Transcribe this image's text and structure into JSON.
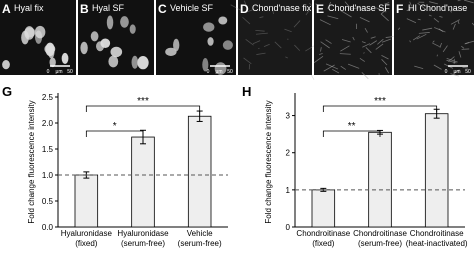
{
  "image_panels": [
    {
      "letter": "A",
      "label": "Hyal fix",
      "scale_bar": [
        "0",
        "μm",
        "50"
      ]
    },
    {
      "letter": "B",
      "label": "Hyal  SF"
    },
    {
      "letter": "C",
      "label": "Vehicle SF",
      "scale_bar": [
        "0",
        "μm",
        "50"
      ]
    },
    {
      "letter": "D",
      "label": "Chond'nase fix"
    },
    {
      "letter": "E",
      "label": "Chond'nase SF"
    },
    {
      "letter": "F",
      "label": "HI Chond'nase",
      "scale_bar": [
        "0",
        "μm",
        "50"
      ]
    }
  ],
  "chart_data": [
    {
      "type": "bar",
      "panel": "G",
      "ylabel": "Fold change fluorescence intensity",
      "categories": [
        "Hyaluronidase (fixed)",
        "Hyaluronidase (serum-free)",
        "Vehicle (serum-free)"
      ],
      "values": [
        1.0,
        1.73,
        2.13
      ],
      "errors": [
        0.06,
        0.13,
        0.1
      ],
      "color": "#eeeeee",
      "ylim": [
        0,
        2.5
      ],
      "yticks": [
        {
          "value": 0,
          "label": "0.0"
        },
        0.5,
        {
          "value": 1,
          "label": "1.0"
        },
        1.5,
        {
          "value": 2,
          "label": "2.0"
        },
        2.5
      ],
      "reference_line": 1,
      "annotations": [
        {
          "text": "*",
          "from": 0,
          "to": 1
        },
        {
          "text": "***",
          "from": 0,
          "to": 2
        }
      ]
    },
    {
      "type": "bar",
      "panel": "H",
      "ylabel": "Fold change fluorescence intensity",
      "categories": [
        "Chondroitinase (fixed)",
        "Chondroitinase (serum-free)",
        "Chondroitinase (heat-inactivated)"
      ],
      "values": [
        1.0,
        2.55,
        3.05
      ],
      "errors": [
        0.04,
        0.05,
        0.12
      ],
      "color": "#eeeeee",
      "ylim": [
        0,
        3.5
      ],
      "yticks": [
        0,
        1,
        2,
        3
      ],
      "reference_line": 1,
      "annotations": [
        {
          "text": "**",
          "from": 0,
          "to": 1
        },
        {
          "text": "***",
          "from": 0,
          "to": 2
        }
      ]
    }
  ]
}
